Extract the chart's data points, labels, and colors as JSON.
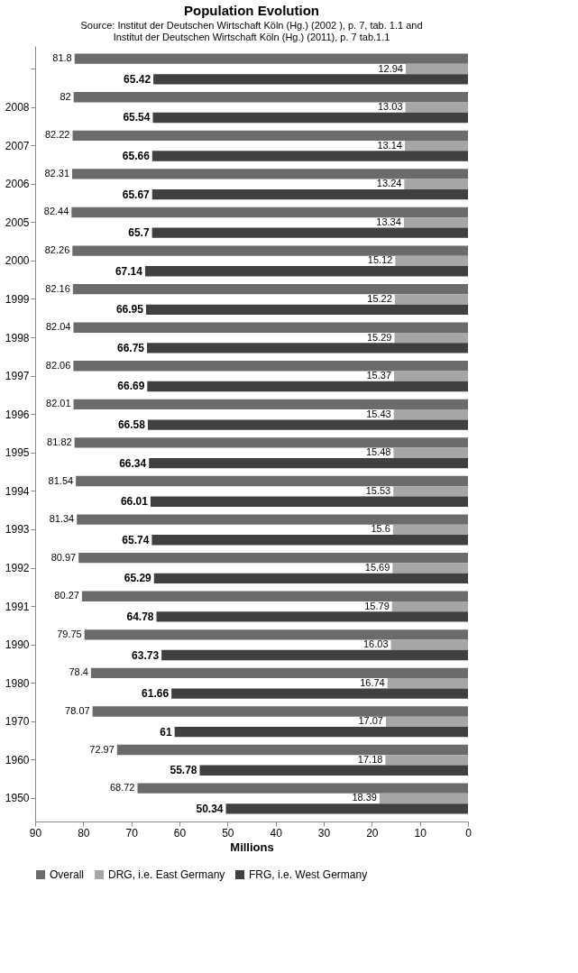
{
  "chart_data": {
    "type": "bar",
    "orientation": "horizontal",
    "title": "Population Evolution",
    "subtitle": [
      "Source: Institut der Deutschen Wirtschaft Köln (Hg.) (2002 ), p. 7, tab. 1.1 and",
      "Institut der Deutschen Wirtschaft Köln (Hg.) (2011), p. 7 tab.1.1"
    ],
    "xlabel": "Millions",
    "categories": [
      null,
      "2008",
      "2007",
      "2006",
      "2005",
      "2000",
      "1999",
      "1998",
      "1997",
      "1996",
      "1995",
      "1994",
      "1993",
      "1992",
      "1991",
      "1990",
      "1980",
      "1970",
      "1960",
      "1950"
    ],
    "series": [
      {
        "name": "Overall",
        "color": "#6b6b6b",
        "values": [
          81.8,
          82,
          82.22,
          82.31,
          82.44,
          82.26,
          82.16,
          82.04,
          82.06,
          82.01,
          81.82,
          81.54,
          81.34,
          80.97,
          80.27,
          79.75,
          78.4,
          78.07,
          72.97,
          68.72
        ]
      },
      {
        "name": "DRG, i.e. East Germany",
        "color": "#a6a6a6",
        "values": [
          12.94,
          13.03,
          13.14,
          13.24,
          13.34,
          15.12,
          15.22,
          15.29,
          15.37,
          15.43,
          15.48,
          15.53,
          15.6,
          15.69,
          15.79,
          16.03,
          16.74,
          17.07,
          17.18,
          18.39
        ]
      },
      {
        "name": "FRG, i.e. West Germany",
        "color": "#404040",
        "values": [
          65.42,
          65.54,
          65.66,
          65.67,
          65.7,
          67.14,
          66.95,
          66.75,
          66.69,
          66.58,
          66.34,
          66.01,
          65.74,
          65.29,
          64.78,
          63.73,
          61.66,
          61,
          55.78,
          50.34
        ]
      }
    ],
    "xlim": [
      90,
      0
    ],
    "xticks": [
      0,
      10,
      20,
      30,
      40,
      50,
      60,
      70,
      80,
      90
    ],
    "data_labels": true,
    "grid": false,
    "legend": "bottom"
  }
}
